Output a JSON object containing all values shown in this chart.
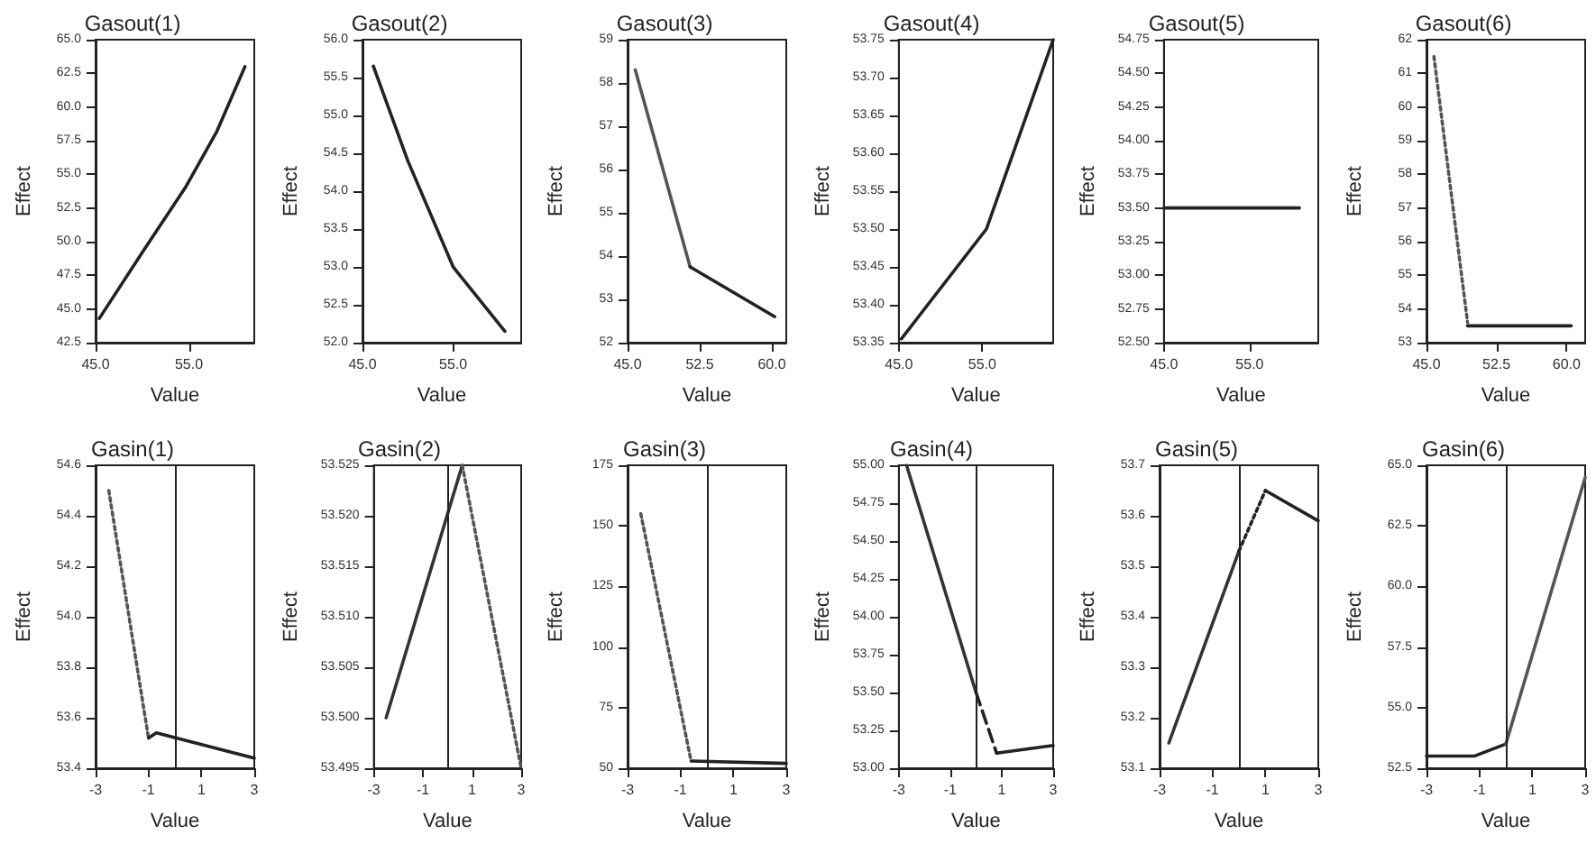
{
  "chart_data": [
    {
      "type": "line",
      "title": "Gasout(1)",
      "xlabel": "Value",
      "ylabel": "Effect",
      "xlim": [
        45,
        62
      ],
      "xticks": [
        {
          "value": 45,
          "label": "45.0"
        },
        {
          "value": 55,
          "label": "55.0"
        }
      ],
      "ylim": [
        42.5,
        65
      ],
      "yticks": [
        42.5,
        {
          "value": 45,
          "label": "45.0"
        },
        47.5,
        {
          "value": 50,
          "label": "50.0"
        },
        52.5,
        {
          "value": 55,
          "label": "55.0"
        },
        57.5,
        {
          "value": 60,
          "label": "60.0"
        },
        62.5,
        {
          "value": 65,
          "label": "65.0"
        }
      ],
      "marker": "none",
      "series": [
        {
          "color": "#222222",
          "line_style": "solid",
          "x": [
            45.4,
            50,
            54.6,
            58,
            61
          ],
          "values": [
            44.3,
            49.2,
            54.0,
            58.2,
            63.0
          ]
        }
      ]
    },
    {
      "type": "line",
      "title": "Gasout(2)",
      "xlabel": "Value",
      "ylabel": "Effect",
      "xlim": [
        45,
        62.5
      ],
      "xticks": [
        {
          "value": 45,
          "label": "45.0"
        },
        {
          "value": 55,
          "label": "55.0"
        }
      ],
      "ylim": [
        52,
        56
      ],
      "yticks": [
        {
          "value": 52,
          "label": "52.0"
        },
        52.5,
        {
          "value": 53,
          "label": "53.0"
        },
        53.5,
        {
          "value": 54,
          "label": "54.0"
        },
        54.5,
        {
          "value": 55,
          "label": "55.0"
        },
        55.5,
        {
          "value": 56,
          "label": "56.0"
        }
      ],
      "marker": "none",
      "series": [
        {
          "color": "#222222",
          "line_style": "solid",
          "x": [
            46.2,
            50,
            55,
            60.7
          ],
          "values": [
            55.65,
            54.4,
            53.0,
            52.15
          ]
        }
      ]
    },
    {
      "type": "line",
      "title": "Gasout(3)",
      "xlabel": "Value",
      "ylabel": "Effect",
      "xlim": [
        45,
        61.5
      ],
      "xticks": [
        {
          "value": 45,
          "label": "45.0"
        },
        {
          "value": 52.5,
          "label": "52.5"
        },
        {
          "value": 60,
          "label": "60.0"
        }
      ],
      "ylim": [
        52,
        59
      ],
      "yticks": [
        52,
        53,
        54,
        55,
        56,
        57,
        58,
        59
      ],
      "marker": "none",
      "series": [
        {
          "color": "#555555",
          "line_style": "solid",
          "x": [
            45.8,
            51.5
          ],
          "values": [
            58.3,
            53.75
          ]
        },
        {
          "color": "#222222",
          "line_style": "solid",
          "x": [
            51.5,
            60.3
          ],
          "values": [
            53.75,
            52.6
          ]
        }
      ]
    },
    {
      "type": "line",
      "title": "Gasout(4)",
      "xlabel": "Value",
      "ylabel": "Effect",
      "xlim": [
        45,
        63.5
      ],
      "xticks": [
        {
          "value": 45,
          "label": "45.0"
        },
        {
          "value": 55,
          "label": "55.0"
        }
      ],
      "ylim": [
        53.35,
        53.75
      ],
      "yticks": [
        53.35,
        {
          "value": 53.4,
          "label": "53.40"
        },
        53.45,
        {
          "value": 53.5,
          "label": "53.50"
        },
        53.55,
        {
          "value": 53.6,
          "label": "53.60"
        },
        53.65,
        {
          "value": 53.7,
          "label": "53.70"
        },
        53.75
      ],
      "marker": "none",
      "series": [
        {
          "color": "#222222",
          "line_style": "solid",
          "x": [
            45.3,
            55.5,
            63.5
          ],
          "values": [
            53.355,
            53.5,
            53.75
          ]
        }
      ]
    },
    {
      "type": "line",
      "title": "Gasout(5)",
      "xlabel": "Value",
      "ylabel": "Effect",
      "xlim": [
        45,
        63
      ],
      "xticks": [
        {
          "value": 45,
          "label": "45.0"
        },
        {
          "value": 55,
          "label": "55.0"
        }
      ],
      "ylim": [
        52.5,
        54.75
      ],
      "yticks": [
        {
          "value": 52.5,
          "label": "52.50"
        },
        52.75,
        {
          "value": 53,
          "label": "53.00"
        },
        53.25,
        {
          "value": 53.5,
          "label": "53.50"
        },
        53.75,
        {
          "value": 54,
          "label": "54.00"
        },
        54.25,
        {
          "value": 54.5,
          "label": "54.50"
        },
        54.75
      ],
      "marker": "none",
      "series": [
        {
          "color": "#222222",
          "line_style": "solid",
          "x": [
            45,
            60.8
          ],
          "values": [
            53.5,
            53.5
          ]
        }
      ]
    },
    {
      "type": "line",
      "title": "Gasout(6)",
      "xlabel": "Value",
      "ylabel": "Effect",
      "xlim": [
        45,
        62
      ],
      "xticks": [
        {
          "value": 45,
          "label": "45.0"
        },
        {
          "value": 52.5,
          "label": "52.5"
        },
        {
          "value": 60,
          "label": "60.0"
        }
      ],
      "ylim": [
        53,
        62
      ],
      "yticks": [
        53,
        54,
        55,
        56,
        57,
        58,
        59,
        60,
        61,
        62
      ],
      "marker": "none",
      "series": [
        {
          "color": "#555555",
          "line_style": "dotted",
          "x": [
            45.8,
            49.4
          ],
          "values": [
            61.5,
            53.6
          ]
        },
        {
          "color": "#222222",
          "line_style": "solid",
          "x": [
            49.4,
            60.5
          ],
          "values": [
            53.5,
            53.5
          ]
        }
      ]
    },
    {
      "type": "line",
      "title": "Gasin(1)",
      "xlabel": "Value",
      "ylabel": "Effect",
      "xlim": [
        -3,
        3
      ],
      "xticks": [
        -3,
        -1,
        1,
        3
      ],
      "ylim": [
        53.4,
        54.6
      ],
      "yticks": [
        53.4,
        53.6,
        53.8,
        {
          "value": 54,
          "label": "54.0"
        },
        54.2,
        54.4,
        54.6
      ],
      "marker": "none",
      "ref_lines": [
        {
          "axis": "x",
          "value": 0
        }
      ],
      "series": [
        {
          "color": "#555555",
          "line_style": "dotted",
          "x": [
            -2.5,
            -1
          ],
          "values": [
            54.5,
            53.52
          ]
        },
        {
          "color": "#222222",
          "line_style": "solid",
          "x": [
            -1,
            -0.7,
            3
          ],
          "values": [
            53.52,
            53.54,
            53.44
          ]
        }
      ]
    },
    {
      "type": "line",
      "title": "Gasin(2)",
      "xlabel": "Value",
      "ylabel": "Effect",
      "xlim": [
        -3,
        3
      ],
      "xticks": [
        -3,
        -1,
        1,
        3
      ],
      "ylim": [
        53.495,
        53.525
      ],
      "yticks": [
        53.495,
        {
          "value": 53.5,
          "label": "53.500"
        },
        53.505,
        {
          "value": 53.51,
          "label": "53.510"
        },
        53.515,
        {
          "value": 53.52,
          "label": "53.520"
        },
        53.525
      ],
      "marker": "none",
      "ref_lines": [
        {
          "axis": "x",
          "value": 0
        }
      ],
      "series": [
        {
          "color": "#333333",
          "line_style": "solid",
          "x": [
            -2.5,
            0.6
          ],
          "values": [
            53.5,
            53.525
          ]
        },
        {
          "color": "#555555",
          "line_style": "dotted",
          "x": [
            0.6,
            3
          ],
          "values": [
            53.525,
            53.495
          ]
        }
      ]
    },
    {
      "type": "line",
      "title": "Gasin(3)",
      "xlabel": "Value",
      "ylabel": "Effect",
      "xlim": [
        -3,
        3
      ],
      "xticks": [
        -3,
        -1,
        1,
        3
      ],
      "ylim": [
        50,
        175
      ],
      "yticks": [
        50,
        75,
        100,
        125,
        150,
        175
      ],
      "marker": "none",
      "ref_lines": [
        {
          "axis": "x",
          "value": 0
        }
      ],
      "series": [
        {
          "color": "#555555",
          "line_style": "dotted",
          "x": [
            -2.5,
            -0.6
          ],
          "values": [
            155,
            53
          ]
        },
        {
          "color": "#222222",
          "line_style": "solid",
          "x": [
            -0.6,
            3
          ],
          "values": [
            53,
            52
          ]
        }
      ]
    },
    {
      "type": "line",
      "title": "Gasin(4)",
      "xlabel": "Value",
      "ylabel": "Effect",
      "xlim": [
        -3,
        3
      ],
      "xticks": [
        -3,
        -1,
        1,
        3
      ],
      "ylim": [
        53,
        55
      ],
      "yticks": [
        {
          "value": 53,
          "label": "53.00"
        },
        53.25,
        {
          "value": 53.5,
          "label": "53.50"
        },
        53.75,
        {
          "value": 54,
          "label": "54.00"
        },
        54.25,
        {
          "value": 54.5,
          "label": "54.50"
        },
        54.75,
        {
          "value": 55,
          "label": "55.00"
        }
      ],
      "marker": "none",
      "ref_lines": [
        {
          "axis": "x",
          "value": 0
        }
      ],
      "series": [
        {
          "color": "#333333",
          "line_style": "solid",
          "x": [
            -2.7,
            0
          ],
          "values": [
            55,
            53.5
          ]
        },
        {
          "color": "#222222",
          "line_style": "dashed",
          "x": [
            0,
            0.8
          ],
          "values": [
            53.5,
            53.1
          ]
        },
        {
          "color": "#222222",
          "line_style": "solid",
          "x": [
            0.8,
            3
          ],
          "values": [
            53.1,
            53.15
          ]
        }
      ]
    },
    {
      "type": "line",
      "title": "Gasin(5)",
      "xlabel": "Value",
      "ylabel": "Effect",
      "xlim": [
        -3,
        3
      ],
      "xticks": [
        -3,
        -1,
        1,
        3
      ],
      "ylim": [
        53.1,
        53.7
      ],
      "yticks": [
        53.1,
        53.2,
        53.3,
        53.4,
        53.5,
        53.6,
        53.7
      ],
      "marker": "none",
      "ref_lines": [
        {
          "axis": "x",
          "value": 0
        }
      ],
      "series": [
        {
          "color": "#333333",
          "line_style": "solid",
          "x": [
            -2.65,
            0
          ],
          "values": [
            53.15,
            53.53
          ]
        },
        {
          "color": "#222222",
          "line_style": "dotted",
          "x": [
            0,
            1
          ],
          "values": [
            53.53,
            53.65
          ]
        },
        {
          "color": "#222222",
          "line_style": "solid",
          "x": [
            1,
            3
          ],
          "values": [
            53.65,
            53.59
          ]
        }
      ]
    },
    {
      "type": "line",
      "title": "Gasin(6)",
      "xlabel": "Value",
      "ylabel": "Effect",
      "xlim": [
        -3,
        3
      ],
      "xticks": [
        -3,
        -1,
        1,
        3
      ],
      "ylim": [
        52.5,
        65
      ],
      "yticks": [
        52.5,
        {
          "value": 55,
          "label": "55.0"
        },
        57.5,
        {
          "value": 60,
          "label": "60.0"
        },
        62.5,
        {
          "value": 65,
          "label": "65.0"
        }
      ],
      "marker": "none",
      "ref_lines": [
        {
          "axis": "x",
          "value": 0
        }
      ],
      "series": [
        {
          "color": "#222222",
          "line_style": "solid",
          "x": [
            -3,
            -1.2,
            0
          ],
          "values": [
            53,
            53,
            53.5
          ]
        },
        {
          "color": "#555555",
          "line_style": "solid",
          "x": [
            0,
            3
          ],
          "values": [
            53.5,
            64.5
          ]
        }
      ]
    }
  ]
}
